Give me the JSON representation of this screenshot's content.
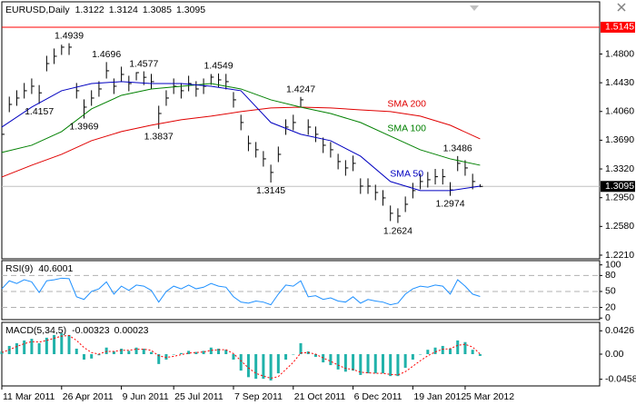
{
  "chart_data": [
    {
      "type": "ohlc",
      "title": "EURUSD,Daily",
      "readout": [
        1.3122,
        1.3124,
        1.3085,
        1.3095
      ],
      "ylim": [
        1.2163,
        1.5472
      ],
      "yticks": [
        {
          "value": 1.48,
          "label": "1.4800"
        },
        {
          "value": 1.443,
          "label": "1.4430"
        },
        {
          "value": 1.406,
          "label": "1.4060"
        },
        {
          "value": 1.369,
          "label": "1.3690"
        },
        {
          "value": 1.332,
          "label": "1.3320"
        },
        {
          "value": 1.295,
          "label": "1.2950"
        },
        {
          "value": 1.258,
          "label": "1.2580"
        },
        {
          "value": 1.221,
          "label": "1.2210"
        }
      ],
      "hline": {
        "value": 1.5145,
        "color": "#ff0000"
      },
      "last_price": 1.3095,
      "series": [
        {
          "type": "ohlc",
          "color": "#000000",
          "high": [
            1.3866,
            1.4251,
            1.4333,
            1.4427,
            1.4485,
            1.44,
            1.4777,
            1.4871,
            1.492,
            1.4939,
            1.4427,
            1.4216,
            1.4333,
            1.445,
            1.4696,
            1.4485,
            1.4637,
            1.452,
            1.4566,
            1.4577,
            1.4544,
            1.4134,
            1.4333,
            1.4485,
            1.4427,
            1.452,
            1.445,
            1.4485,
            1.4542,
            1.4549,
            1.4544,
            1.431,
            1.4018,
            1.3749,
            1.3667,
            1.355,
            1.3375,
            1.3608,
            1.3959,
            1.4018,
            1.4247,
            1.3959,
            1.3866,
            1.3725,
            1.3667,
            1.3515,
            1.3433,
            1.3492,
            1.3199,
            1.3199,
            1.3117,
            1.3047,
            1.2849,
            1.2813,
            1.2965,
            1.3141,
            1.3258,
            1.3281,
            1.332,
            1.332,
            1.315,
            1.3486,
            1.3433,
            1.3258,
            1.3124
          ],
          "low": [
            1.3666,
            1.4051,
            1.4133,
            1.4227,
            1.4285,
            1.4157,
            1.4577,
            1.4671,
            1.4788,
            1.4788,
            1.4227,
            1.3969,
            1.4133,
            1.425,
            1.4484,
            1.4285,
            1.4437,
            1.432,
            1.446,
            1.44,
            1.4344,
            1.3837,
            1.4133,
            1.4285,
            1.4227,
            1.432,
            1.425,
            1.4285,
            1.4402,
            1.4367,
            1.4344,
            1.411,
            1.3818,
            1.3549,
            1.3467,
            1.335,
            1.3145,
            1.3408,
            1.3759,
            1.3818,
            1.411,
            1.3759,
            1.3666,
            1.3525,
            1.3467,
            1.3315,
            1.3233,
            1.3292,
            1.2999,
            1.2999,
            1.2917,
            1.2847,
            1.2649,
            1.2624,
            1.2765,
            1.2941,
            1.3058,
            1.3081,
            1.312,
            1.312,
            1.2974,
            1.3292,
            1.3233,
            1.3058,
            1.3085
          ],
          "close": [
            1.3766,
            1.4151,
            1.4233,
            1.4327,
            1.4385,
            1.43,
            1.4677,
            1.4771,
            1.4888,
            1.4888,
            1.4327,
            1.4116,
            1.4233,
            1.435,
            1.4584,
            1.4385,
            1.4537,
            1.442,
            1.456,
            1.45,
            1.4444,
            1.4034,
            1.4233,
            1.4385,
            1.4327,
            1.442,
            1.435,
            1.4385,
            1.4502,
            1.4467,
            1.4444,
            1.421,
            1.3918,
            1.3649,
            1.3567,
            1.345,
            1.3275,
            1.3508,
            1.3859,
            1.3918,
            1.421,
            1.3859,
            1.3766,
            1.3625,
            1.3567,
            1.3415,
            1.3333,
            1.3392,
            1.3099,
            1.3099,
            1.3017,
            1.2947,
            1.2749,
            1.2713,
            1.2865,
            1.3041,
            1.3158,
            1.3181,
            1.322,
            1.322,
            1.305,
            1.3392,
            1.3333,
            1.3158,
            1.3095
          ]
        },
        {
          "type": "line",
          "name": "SMA 200",
          "color": "#e00000",
          "x": [
            0,
            4,
            8,
            12,
            16,
            20,
            24,
            28,
            32,
            36,
            40,
            44,
            48,
            52,
            56,
            60,
            64
          ],
          "values": [
            1.3216,
            1.3368,
            1.3508,
            1.3684,
            1.3801,
            1.3883,
            1.3953,
            1.4,
            1.4058,
            1.4105,
            1.4116,
            1.4105,
            1.4081,
            1.4058,
            1.4,
            1.3883,
            1.3707
          ]
        },
        {
          "type": "line",
          "name": "SMA 100",
          "color": "#008000",
          "x": [
            0,
            4,
            8,
            12,
            16,
            20,
            24,
            28,
            32,
            36,
            40,
            44,
            48,
            52,
            56,
            60,
            64
          ],
          "values": [
            1.3532,
            1.3625,
            1.3801,
            1.4093,
            1.4268,
            1.435,
            1.4385,
            1.442,
            1.435,
            1.421,
            1.4116,
            1.4034,
            1.3918,
            1.3742,
            1.3567,
            1.345,
            1.3368
          ]
        },
        {
          "type": "line",
          "name": "SMA 50",
          "color": "#0000c0",
          "x": [
            0,
            4,
            8,
            12,
            16,
            20,
            24,
            28,
            32,
            36,
            40,
            44,
            48,
            52,
            56,
            60,
            64
          ],
          "values": [
            1.3859,
            1.4116,
            1.4327,
            1.442,
            1.4444,
            1.442,
            1.442,
            1.4385,
            1.4327,
            1.3918,
            1.3766,
            1.3684,
            1.3485,
            1.3158,
            1.3041,
            1.3041,
            1.3099
          ]
        }
      ],
      "annotations": [
        {
          "x": 9,
          "value": 1.4939
        },
        {
          "x": 14,
          "value": 1.4696
        },
        {
          "x": 19,
          "value": 1.4577
        },
        {
          "x": 29,
          "value": 1.4549
        },
        {
          "x": 5,
          "value": 1.4157
        },
        {
          "x": 11,
          "value": 1.3969
        },
        {
          "x": 21,
          "value": 1.3837
        },
        {
          "x": 40,
          "value": 1.4247
        },
        {
          "x": 36,
          "value": 1.3145
        },
        {
          "x": 61,
          "value": 1.3486
        },
        {
          "x": 60,
          "value": 1.2974
        },
        {
          "x": 53,
          "value": 1.2624
        }
      ]
    },
    {
      "type": "line",
      "title": "RSI(9)",
      "readout": [
        40.6001
      ],
      "ylim": [
        -3,
        108
      ],
      "yticks": [
        100,
        80,
        50,
        20,
        0
      ],
      "levels": [
        80,
        50,
        20
      ],
      "series": [
        {
          "type": "line",
          "color": "#1e90ff",
          "values": [
            55,
            70,
            65,
            72,
            68,
            48,
            70,
            72,
            75,
            74,
            40,
            35,
            50,
            55,
            68,
            45,
            60,
            52,
            62,
            60,
            52,
            30,
            50,
            60,
            55,
            62,
            55,
            58,
            65,
            60,
            58,
            40,
            30,
            28,
            32,
            30,
            25,
            45,
            62,
            60,
            70,
            40,
            42,
            35,
            38,
            32,
            30,
            40,
            28,
            35,
            32,
            30,
            25,
            28,
            45,
            55,
            60,
            58,
            62,
            60,
            45,
            72,
            60,
            45,
            40.6
          ]
        }
      ]
    },
    {
      "type": "bar",
      "title": "MACD(5,34,5)",
      "readout": [
        -0.00323,
        0.00023
      ],
      "ylim": [
        -0.058,
        0.058
      ],
      "yticks": [
        0.0426,
        {
          "value": 0,
          "label": "0.00"
        },
        -0.0458
      ],
      "xlim": [
        0,
        80
      ],
      "xticks": [
        {
          "value": 0,
          "label": "11 Mar 2011"
        },
        {
          "value": 8,
          "label": "26 Apr 2011"
        },
        {
          "value": 16,
          "label": "9 Jun 2011"
        },
        {
          "value": 23,
          "label": "25 Jul 2011"
        },
        {
          "value": 31,
          "label": "7 Sep 2011"
        },
        {
          "value": 39,
          "label": "21 Oct 2011"
        },
        {
          "value": 47,
          "label": "6 Dec 2011"
        },
        {
          "value": 55,
          "label": "19 Jan 2012"
        },
        {
          "value": 62,
          "label": "5 Mar 2012"
        }
      ],
      "series": [
        {
          "type": "bar",
          "color": "#20b2aa",
          "values": [
            0.005,
            0.015,
            0.02,
            0.025,
            0.028,
            0.02,
            0.03,
            0.035,
            0.038,
            0.035,
            0.01,
            -0.01,
            -0.008,
            -0.002,
            0.012,
            0.005,
            0.01,
            0.006,
            0.012,
            0.01,
            0.004,
            -0.018,
            -0.01,
            0.0,
            0.002,
            0.006,
            0.004,
            0.006,
            0.012,
            0.01,
            0.008,
            -0.01,
            -0.03,
            -0.042,
            -0.045,
            -0.045,
            -0.048,
            -0.035,
            -0.01,
            0.0,
            0.02,
            0.005,
            -0.005,
            -0.015,
            -0.02,
            -0.028,
            -0.032,
            -0.03,
            -0.038,
            -0.035,
            -0.035,
            -0.035,
            -0.04,
            -0.04,
            -0.025,
            -0.01,
            0.0,
            0.008,
            0.012,
            0.015,
            0.01,
            0.025,
            0.022,
            0.008,
            -0.00323
          ]
        },
        {
          "type": "line",
          "color": "#ff0000",
          "dashed": true,
          "values": [
            0.003,
            0.008,
            0.014,
            0.019,
            0.023,
            0.022,
            0.025,
            0.029,
            0.033,
            0.034,
            0.025,
            0.012,
            0.003,
            0.0,
            0.005,
            0.005,
            0.007,
            0.007,
            0.009,
            0.009,
            0.007,
            -0.003,
            -0.006,
            -0.004,
            -0.001,
            0.002,
            0.003,
            0.004,
            0.007,
            0.008,
            0.008,
            0.001,
            -0.012,
            -0.025,
            -0.035,
            -0.04,
            -0.044,
            -0.041,
            -0.028,
            -0.015,
            0.002,
            0.003,
            0.0,
            -0.007,
            -0.013,
            -0.02,
            -0.026,
            -0.028,
            -0.033,
            -0.034,
            -0.035,
            -0.035,
            -0.037,
            -0.038,
            -0.032,
            -0.022,
            -0.012,
            -0.003,
            0.004,
            0.009,
            0.01,
            0.016,
            0.018,
            0.013,
            0.00023
          ]
        }
      ]
    }
  ]
}
